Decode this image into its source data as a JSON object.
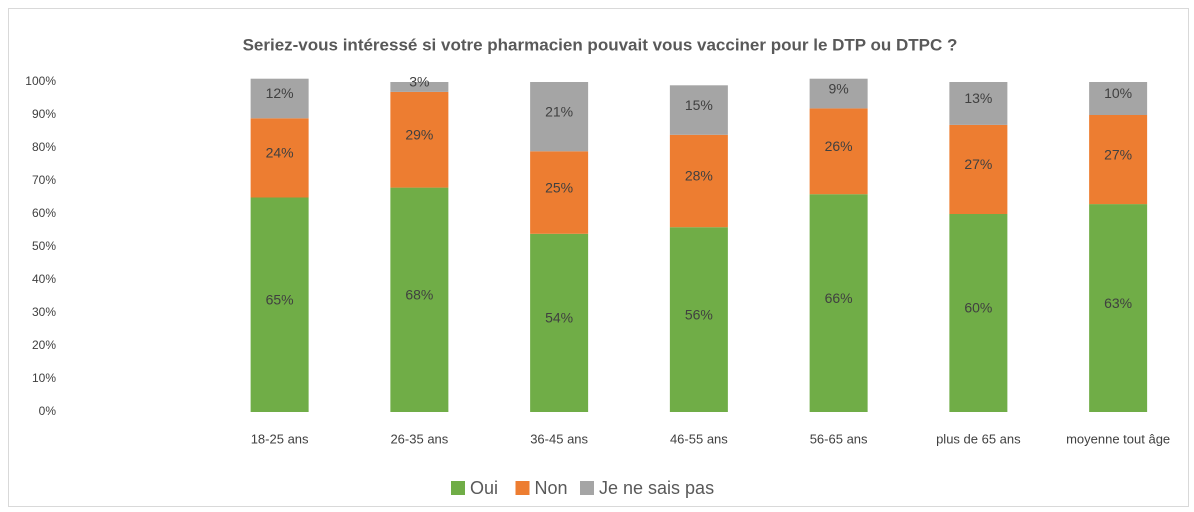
{
  "chart_data": {
    "type": "stacked_bar",
    "title": "Seriez-vous intéressé si votre pharmacien pouvait vous vacciner pour le DTP ou DTPC ?",
    "categories": [
      null,
      "18-25 ans",
      "26-35 ans",
      "36-45 ans",
      "46-55 ans",
      "56-65 ans",
      "plus de 65 ans",
      "moyenne tout âge"
    ],
    "series": [
      {
        "name": "Oui",
        "color": "#70ad47",
        "values": [
          null,
          65,
          68,
          54,
          56,
          66,
          60,
          63
        ],
        "value_labels": [
          null,
          "65%",
          "68%",
          "54%",
          "56%",
          "66%",
          "60%",
          "63%"
        ]
      },
      {
        "name": "Non",
        "color": "#ed7d31",
        "values": [
          null,
          24,
          29,
          25,
          28,
          26,
          27,
          27
        ],
        "value_labels": [
          null,
          "24%",
          "29%",
          "25%",
          "28%",
          "26%",
          "27%",
          "27%"
        ]
      },
      {
        "name": "Je ne sais pas",
        "color": "#a5a5a5",
        "values": [
          null,
          12,
          3,
          21,
          15,
          9,
          13,
          10
        ],
        "value_labels": [
          null,
          "12%",
          "3%",
          "21%",
          "15%",
          "9%",
          "13%",
          "10%"
        ]
      }
    ],
    "ylim": [
      0,
      100
    ],
    "yticks": [
      {
        "value": 0,
        "label": "0%"
      },
      {
        "value": 10,
        "label": "10%"
      },
      {
        "value": 20,
        "label": "20%"
      },
      {
        "value": 30,
        "label": "30%"
      },
      {
        "value": 40,
        "label": "40%"
      },
      {
        "value": 50,
        "label": "50%"
      },
      {
        "value": 60,
        "label": "60%"
      },
      {
        "value": 70,
        "label": "70%"
      },
      {
        "value": 80,
        "label": "80%"
      },
      {
        "value": 90,
        "label": "90%"
      },
      {
        "value": 100,
        "label": "100%"
      }
    ],
    "legend": "bottom"
  }
}
